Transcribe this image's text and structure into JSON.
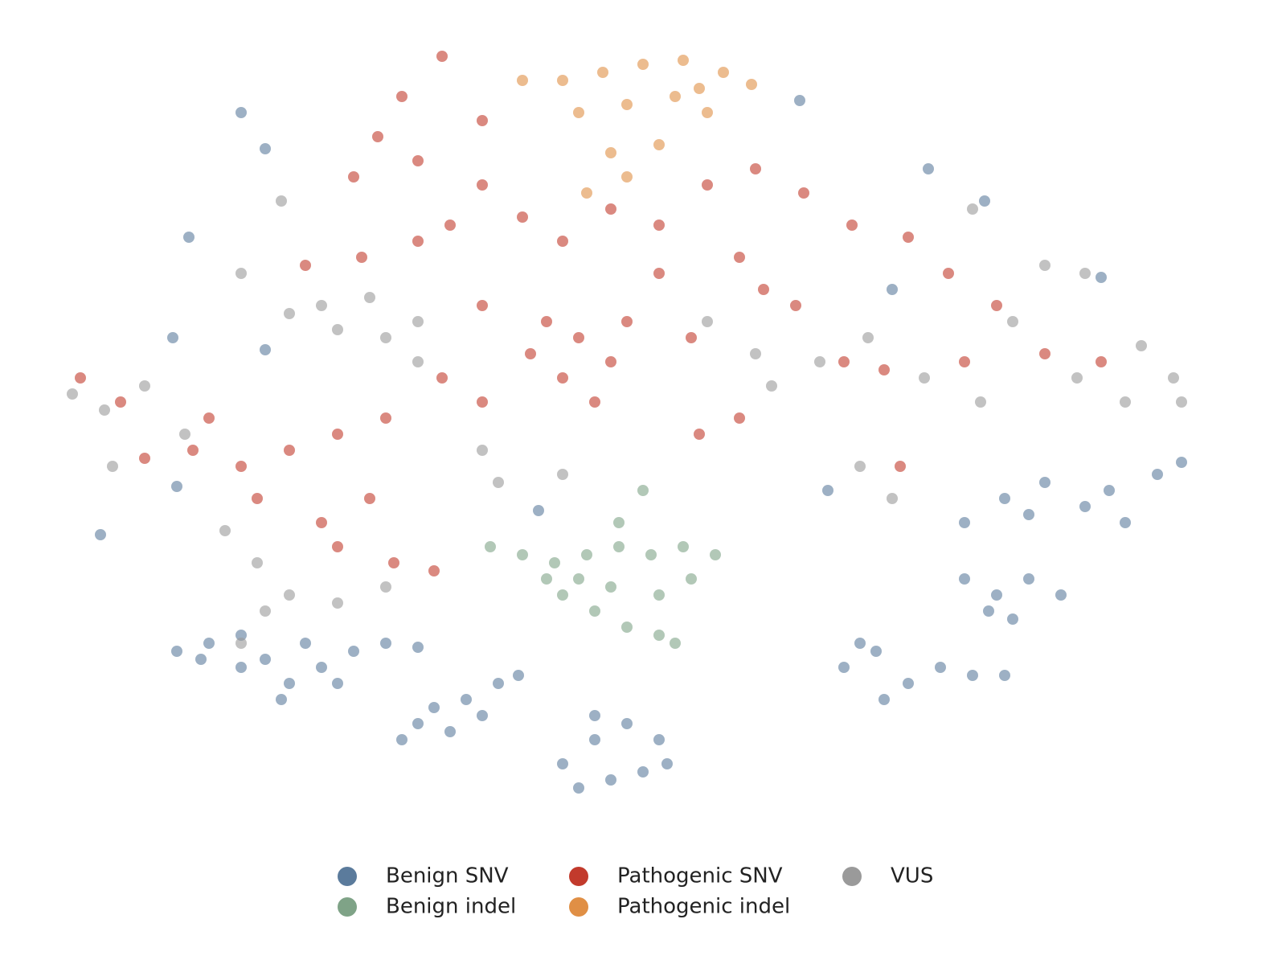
{
  "chart_data": {
    "type": "scatter",
    "xlim": [
      0,
      142
    ],
    "ylim": [
      0,
      95
    ],
    "legend": "bottom",
    "series": [
      {
        "name": "Benign SNV",
        "color": "#5b7b9c",
        "x": [
          14,
          18,
          22,
          25,
          28,
          32,
          36,
          40,
          44,
          22,
          30,
          27,
          17,
          34,
          42,
          46,
          50,
          54,
          48,
          44,
          52,
          56.5,
          62,
          66,
          70,
          74,
          68,
          64,
          72,
          66,
          75,
          97,
          101,
          105,
          109,
          113,
          117,
          102,
          99,
          112,
          116,
          120,
          124,
          118,
          115,
          112,
          117,
          122,
          127,
          132,
          136,
          139,
          120,
          130,
          22,
          25,
          15.5,
          13.5,
          4.5,
          14,
          25,
          107.5,
          114.5,
          91.5,
          129,
          103,
          59,
          95
        ],
        "values": [
          19,
          20,
          21,
          18,
          15,
          17,
          19,
          20,
          19.5,
          17,
          20,
          13,
          18,
          15,
          8,
          12,
          13,
          15,
          9,
          10,
          11,
          16,
          5,
          8,
          10,
          8,
          3,
          2,
          4,
          11,
          5,
          17,
          19,
          15,
          17,
          16,
          16,
          13,
          20,
          28,
          26,
          28,
          26,
          23,
          24,
          35,
          38,
          40,
          37,
          35,
          41,
          42.5,
          36,
          39,
          86,
          81.5,
          70.5,
          58,
          33.5,
          39.5,
          56.5,
          79,
          75,
          87.5,
          65.5,
          64,
          36.5,
          39
        ]
      },
      {
        "name": "Benign indel",
        "color": "#7fa387",
        "x": [
          53,
          57,
          61,
          65,
          69,
          73,
          77,
          81,
          62,
          66,
          70,
          74,
          68,
          74,
          78,
          69,
          72,
          76,
          60,
          64
        ],
        "values": [
          32,
          31,
          30,
          31,
          32,
          31,
          32,
          31,
          26,
          24,
          22,
          21,
          27,
          26,
          28,
          35,
          39,
          20,
          28,
          28
        ]
      },
      {
        "name": "Pathogenic SNV",
        "color": "#c23a2c",
        "x": [
          47,
          42,
          39,
          36,
          44,
          52,
          52,
          48,
          57,
          62,
          68,
          74,
          80,
          86,
          92,
          98,
          105,
          84,
          87,
          60,
          64,
          68,
          62,
          66,
          58,
          70,
          52,
          47,
          40,
          34,
          28,
          22,
          16,
          10,
          30,
          37,
          44,
          32,
          38,
          41,
          34,
          79,
          84,
          104,
          102,
          112,
          122,
          129,
          116,
          97,
          2,
          7,
          46,
          91,
          110,
          24,
          18,
          74,
          78,
          52
        ],
        "values": [
          93,
          88,
          83,
          78,
          80,
          85,
          77,
          72,
          73,
          70,
          74,
          72,
          77,
          79,
          76,
          72,
          70.5,
          68,
          64,
          60,
          58,
          55,
          53,
          50,
          56,
          60,
          50,
          53,
          48,
          46,
          44,
          42,
          44,
          43,
          67,
          68,
          70,
          35,
          38,
          30,
          32,
          46,
          48,
          42,
          54,
          55,
          56,
          55,
          62,
          55,
          53,
          50,
          29,
          62,
          66,
          38,
          48,
          66,
          58,
          62
        ]
      },
      {
        "name": "Pathogenic indel",
        "color": "#e08f45",
        "x": [
          62,
          67,
          72,
          77,
          82,
          85.5,
          64,
          70,
          76,
          80,
          68,
          74,
          65,
          70,
          57,
          79
        ],
        "values": [
          90,
          91,
          92,
          92.5,
          91,
          89.5,
          86,
          87,
          88,
          86,
          81,
          82,
          76,
          78,
          90,
          89
        ]
      },
      {
        "name": "VUS",
        "color": "#9a9a9a",
        "x": [
          32,
          38,
          44,
          40,
          34,
          28,
          1,
          5,
          10,
          15,
          6,
          20,
          24,
          28,
          34,
          40,
          25,
          22,
          44,
          52,
          62,
          54,
          88,
          94,
          100,
          107,
          114,
          118,
          122,
          127,
          134,
          138,
          139,
          132,
          126,
          103,
          99,
          113,
          22,
          27,
          80,
          86
        ],
        "values": [
          62,
          63,
          60,
          58,
          59,
          61,
          51,
          49,
          52,
          46,
          42,
          34,
          30,
          26,
          25,
          27,
          24,
          20,
          55,
          44,
          41,
          40,
          52,
          55,
          58,
          53,
          50,
          60,
          67,
          66,
          57,
          53,
          50,
          50,
          53,
          38,
          42,
          74,
          66,
          75,
          60,
          56
        ]
      }
    ]
  }
}
